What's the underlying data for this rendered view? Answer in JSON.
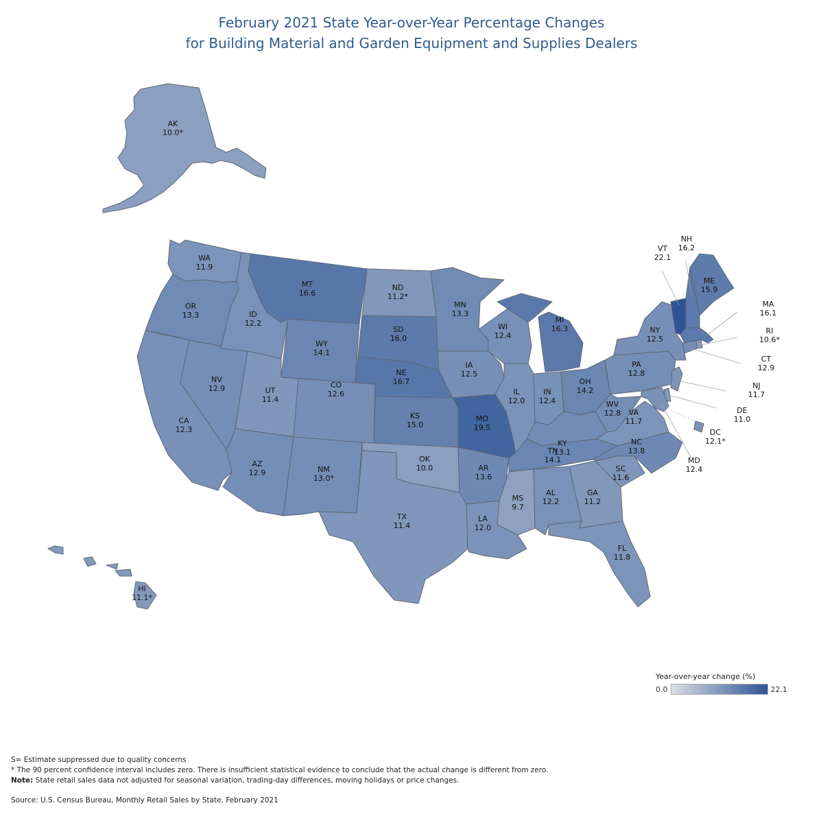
{
  "title": {
    "line1": "February 2021 State Year-over-Year Percentage Changes",
    "line2": "for Building Material and Garden Equipment and Supplies Dealers"
  },
  "colors": {
    "scale_min": "#d9dde2",
    "scale_max": "#2d5596",
    "border": "#5e6673",
    "title": "#2f5a8e"
  },
  "legend": {
    "title": "Year-over-year change (%)",
    "min": "0.0",
    "max": "22.1"
  },
  "chart_data": {
    "type": "choropleth",
    "title": "February 2021 State Year-over-Year Percentage Changes for Building Material and Garden Equipment and Supplies Dealers",
    "metric": "Year-over-year change (%)",
    "range": [
      0.0,
      22.1
    ],
    "states": [
      {
        "code": "AK",
        "value": 10.0,
        "label": "10.0*"
      },
      {
        "code": "WA",
        "value": 11.9,
        "label": "11.9"
      },
      {
        "code": "OR",
        "value": 13.3,
        "label": "13.3"
      },
      {
        "code": "CA",
        "value": 12.3,
        "label": "12.3"
      },
      {
        "code": "NV",
        "value": 12.9,
        "label": "12.9"
      },
      {
        "code": "ID",
        "value": 12.2,
        "label": "12.2"
      },
      {
        "code": "MT",
        "value": 16.6,
        "label": "16.6"
      },
      {
        "code": "WY",
        "value": 14.1,
        "label": "14.1"
      },
      {
        "code": "UT",
        "value": 11.4,
        "label": "11.4"
      },
      {
        "code": "AZ",
        "value": 12.9,
        "label": "12.9"
      },
      {
        "code": "CO",
        "value": 12.6,
        "label": "12.6"
      },
      {
        "code": "NM",
        "value": 13.0,
        "label": "13.0*"
      },
      {
        "code": "ND",
        "value": 11.2,
        "label": "11.2*"
      },
      {
        "code": "SD",
        "value": 16.0,
        "label": "16.0"
      },
      {
        "code": "NE",
        "value": 16.7,
        "label": "16.7"
      },
      {
        "code": "KS",
        "value": 15.0,
        "label": "15.0"
      },
      {
        "code": "OK",
        "value": 10.0,
        "label": "10.0"
      },
      {
        "code": "TX",
        "value": 11.4,
        "label": "11.4"
      },
      {
        "code": "MN",
        "value": 13.3,
        "label": "13.3"
      },
      {
        "code": "IA",
        "value": 12.5,
        "label": "12.5"
      },
      {
        "code": "MO",
        "value": 19.5,
        "label": "19.5"
      },
      {
        "code": "AR",
        "value": 13.6,
        "label": "13.6"
      },
      {
        "code": "LA",
        "value": 12.0,
        "label": "12.0"
      },
      {
        "code": "WI",
        "value": 12.4,
        "label": "12.4"
      },
      {
        "code": "IL",
        "value": 12.0,
        "label": "12.0"
      },
      {
        "code": "MI",
        "value": 16.3,
        "label": "16.3"
      },
      {
        "code": "IN",
        "value": 12.4,
        "label": "12.4"
      },
      {
        "code": "OH",
        "value": 14.2,
        "label": "14.2"
      },
      {
        "code": "KY",
        "value": 13.1,
        "label": "13.1"
      },
      {
        "code": "TN",
        "value": 14.1,
        "label": "14.1"
      },
      {
        "code": "MS",
        "value": 9.7,
        "label": "9.7"
      },
      {
        "code": "AL",
        "value": 12.2,
        "label": "12.2"
      },
      {
        "code": "GA",
        "value": 11.2,
        "label": "11.2"
      },
      {
        "code": "FL",
        "value": 11.8,
        "label": "11.8"
      },
      {
        "code": "SC",
        "value": 11.6,
        "label": "11.6"
      },
      {
        "code": "NC",
        "value": 13.8,
        "label": "13.8"
      },
      {
        "code": "VA",
        "value": 11.7,
        "label": "11.7"
      },
      {
        "code": "WV",
        "value": 12.8,
        "label": "12.8"
      },
      {
        "code": "PA",
        "value": 12.8,
        "label": "12.8"
      },
      {
        "code": "NY",
        "value": 12.5,
        "label": "12.5"
      },
      {
        "code": "VT",
        "value": 22.1,
        "label": "22.1"
      },
      {
        "code": "NH",
        "value": 16.2,
        "label": "16.2"
      },
      {
        "code": "ME",
        "value": 15.9,
        "label": "15.9"
      },
      {
        "code": "MA",
        "value": 16.1,
        "label": "16.1"
      },
      {
        "code": "RI",
        "value": 10.6,
        "label": "10.6*"
      },
      {
        "code": "CT",
        "value": 12.9,
        "label": "12.9"
      },
      {
        "code": "NJ",
        "value": 11.7,
        "label": "11.7"
      },
      {
        "code": "DE",
        "value": 11.0,
        "label": "11.0"
      },
      {
        "code": "MD",
        "value": 12.4,
        "label": "12.4"
      },
      {
        "code": "DC",
        "value": 12.1,
        "label": "12.1*"
      },
      {
        "code": "HI",
        "value": 11.1,
        "label": "11.1*"
      }
    ]
  },
  "notes": {
    "suppressed": "S= Estimate suppressed due to quality concerns",
    "asterisk": "* The 90 percent confidence interval includes zero. There is insufficient statistical evidence to conclude that the actual change is different from zero.",
    "note_label": "Note:",
    "note_text": " State retail sales data not adjusted for seasonal variation, trading-day differences, moving holidays or price changes.",
    "source": "Source: U.S. Census Bureau, Monthly Retail Sales by State, February 2021"
  }
}
